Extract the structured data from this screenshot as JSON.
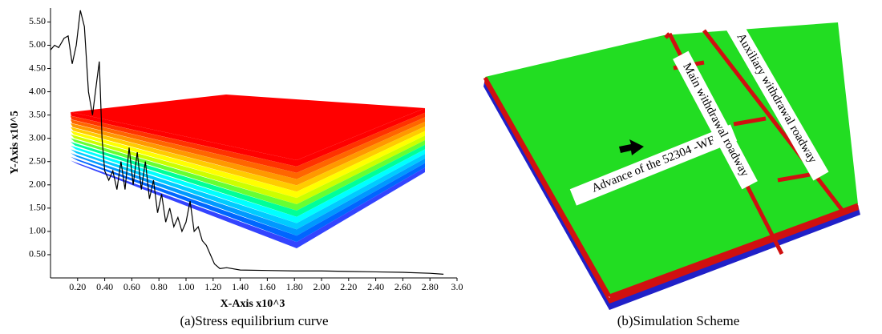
{
  "chart_data": {
    "type": "line",
    "caption": "(a)Stress equilibrium curve",
    "xlabel": "X-Axis x10^3",
    "ylabel": "Y-Axis x10^5",
    "color": "#000000",
    "xlim": [
      0,
      3.0
    ],
    "ylim": [
      0,
      5.8
    ],
    "xticks": [
      {
        "value": 0.2,
        "label": "0.20"
      },
      {
        "value": 0.4,
        "label": "0.40"
      },
      {
        "value": 0.6,
        "label": "0.60"
      },
      {
        "value": 0.8,
        "label": "0.80"
      },
      {
        "value": 1.0,
        "label": "1.00"
      },
      {
        "value": 1.2,
        "label": "1.20"
      },
      {
        "value": 1.4,
        "label": "1.40"
      },
      {
        "value": 1.6,
        "label": "1.60"
      },
      {
        "value": 1.8,
        "label": "1.80"
      },
      {
        "value": 2.0,
        "label": "2.00"
      },
      {
        "value": 2.2,
        "label": "2.20"
      },
      {
        "value": 2.4,
        "label": "2.40"
      },
      {
        "value": 2.6,
        "label": "2.60"
      },
      {
        "value": 2.8,
        "label": "2.80"
      },
      {
        "value": 3.0,
        "label": "3.0"
      }
    ],
    "yticks": [
      {
        "value": 0.5,
        "label": "0.50"
      },
      {
        "value": 1.0,
        "label": "1.00"
      },
      {
        "value": 1.5,
        "label": "1.50"
      },
      {
        "value": 2.0,
        "label": "2.00"
      },
      {
        "value": 2.5,
        "label": "2.50"
      },
      {
        "value": 3.0,
        "label": "3.00"
      },
      {
        "value": 3.5,
        "label": "3.50"
      },
      {
        "value": 4.0,
        "label": "4.00"
      },
      {
        "value": 4.5,
        "label": "4.50"
      },
      {
        "value": 5.0,
        "label": "5.00"
      },
      {
        "value": 5.5,
        "label": "5.50"
      }
    ],
    "x": [
      0.0,
      0.03,
      0.06,
      0.1,
      0.13,
      0.16,
      0.19,
      0.22,
      0.25,
      0.28,
      0.31,
      0.34,
      0.36,
      0.38,
      0.4,
      0.43,
      0.46,
      0.49,
      0.52,
      0.55,
      0.58,
      0.61,
      0.64,
      0.67,
      0.7,
      0.73,
      0.76,
      0.79,
      0.82,
      0.85,
      0.88,
      0.91,
      0.94,
      0.97,
      1.0,
      1.03,
      1.06,
      1.09,
      1.12,
      1.15,
      1.18,
      1.21,
      1.25,
      1.3,
      1.4,
      1.6,
      1.8,
      2.0,
      2.2,
      2.4,
      2.6,
      2.8,
      2.9
    ],
    "values": [
      4.9,
      5.0,
      4.95,
      5.15,
      5.2,
      4.6,
      5.0,
      5.75,
      5.4,
      4.0,
      3.5,
      4.2,
      4.65,
      3.0,
      2.3,
      2.1,
      2.3,
      1.9,
      2.5,
      1.9,
      2.8,
      2.0,
      2.7,
      1.9,
      2.5,
      1.7,
      2.1,
      1.4,
      1.8,
      1.2,
      1.5,
      1.1,
      1.3,
      1.0,
      1.2,
      1.65,
      1.0,
      1.1,
      0.8,
      0.7,
      0.5,
      0.3,
      0.2,
      0.22,
      0.17,
      0.16,
      0.15,
      0.15,
      0.14,
      0.13,
      0.12,
      0.1,
      0.08
    ]
  },
  "scheme": {
    "caption": "(b)Simulation Scheme",
    "main_roadway": "Main withdrawal roadway",
    "auxiliary_roadway": "Auxiliary withdrawal roadway",
    "advance": "Advance of the 52304 -WF"
  }
}
